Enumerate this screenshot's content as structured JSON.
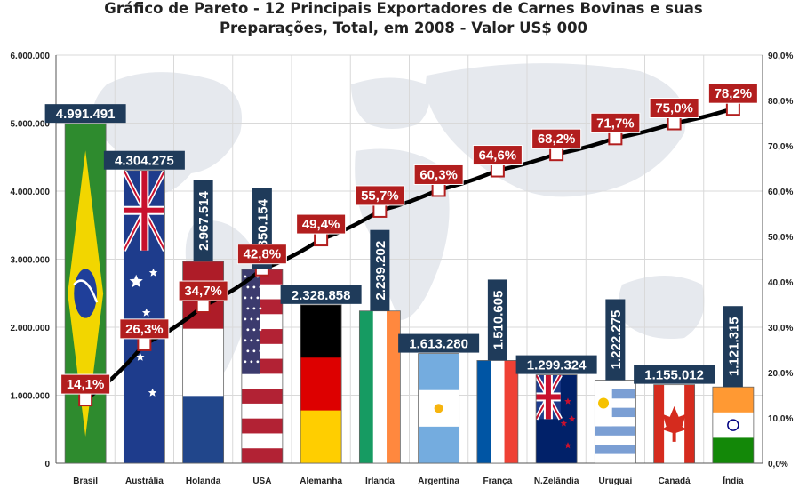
{
  "chart_data": {
    "type": "bar",
    "title_line1": "Gráfico de Pareto - 12 Principais Exportadores de Carnes Bovinas e suas",
    "title_line2": "Preparações, Total,  em 2008 -  Valor US$ 000",
    "categories": [
      "Brasil",
      "Austrália",
      "Holanda",
      "USA",
      "Alemanha",
      "Irlanda",
      "Argentina",
      "França",
      "N.Zelândia",
      "Uruguai",
      "Canadá",
      "Índia"
    ],
    "values": [
      4991491,
      4304275,
      2967514,
      2850154,
      2328858,
      2239202,
      1613280,
      1510605,
      1299324,
      1222275,
      1155012,
      1121315
    ],
    "value_labels": [
      "4.991.491",
      "4.304.275",
      "2.967.514",
      "2.850.154",
      "2.328.858",
      "2.239.202",
      "1.613.280",
      "1.510.605",
      "1.299.324",
      "1.222.275",
      "1.155.012",
      "1.121.315"
    ],
    "cumulative_pct": [
      14.1,
      26.3,
      34.7,
      42.8,
      49.4,
      55.7,
      60.3,
      64.6,
      68.2,
      71.7,
      75.0,
      78.2
    ],
    "cumulative_labels": [
      "14,1%",
      "26,3%",
      "34,7%",
      "42,8%",
      "49,4%",
      "55,7%",
      "60,3%",
      "64,6%",
      "68,2%",
      "71,7%",
      "75,0%",
      "78,2%"
    ],
    "ylim": [
      0,
      6000000
    ],
    "y2lim": [
      0,
      90
    ],
    "y_ticks": [
      "0",
      "1.000.000",
      "2.000.000",
      "3.000.000",
      "4.000.000",
      "5.000.000",
      "6.000.000"
    ],
    "y2_ticks": [
      "0,0%",
      "10,0%",
      "20,0%",
      "30,0%",
      "40,0%",
      "50,0%",
      "60,0%",
      "70,0%",
      "80,0%",
      "90,0%"
    ],
    "value_label_orientation": [
      "horizontal",
      "horizontal",
      "vertical",
      "vertical",
      "horizontal",
      "vertical",
      "horizontal",
      "vertical",
      "horizontal",
      "vertical",
      "horizontal",
      "vertical"
    ],
    "bar_fills": [
      "flag-brasil",
      "flag-australia",
      "flag-holanda",
      "flag-usa",
      "flag-alemanha",
      "flag-irlanda",
      "flag-argentina",
      "flag-franca",
      "flag-nzelandia",
      "flag-uruguai",
      "flag-canada",
      "flag-india"
    ],
    "colors": {
      "value_label_bg": "#1f3b5a",
      "pct_label_bg": "#b21e1e",
      "pareto_line": "#000000",
      "marker_fill": "#ffffff",
      "marker_stroke": "#b21e1e",
      "grid": "#d9d9d9"
    },
    "grid": true
  }
}
